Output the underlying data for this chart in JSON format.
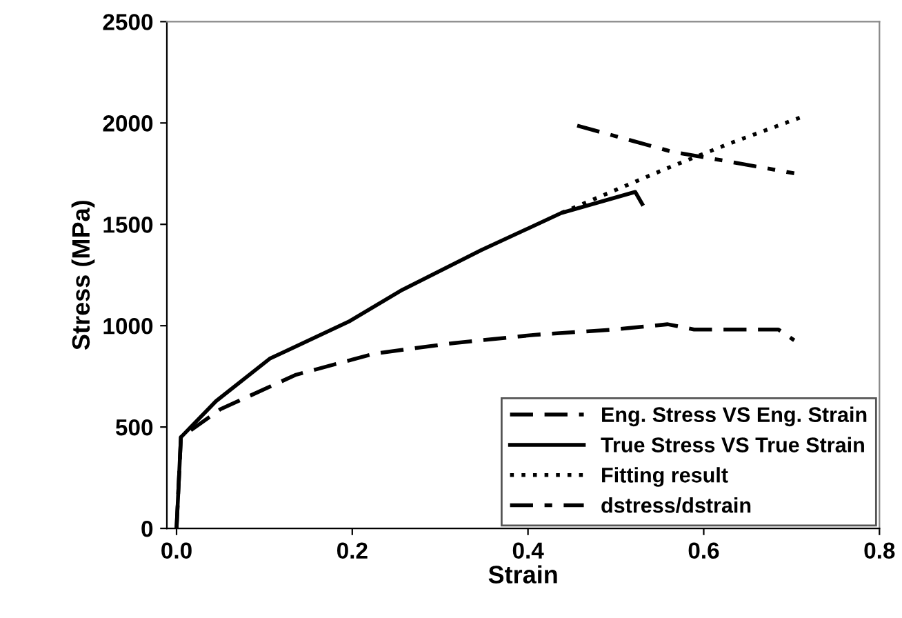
{
  "chart_data": {
    "type": "line",
    "xlabel": "Strain",
    "ylabel": "Stress (MPa)",
    "xlim": [
      -0.011,
      0.8
    ],
    "xticks": [
      {
        "value": 0,
        "label": "0.0"
      },
      0.2,
      0.4,
      0.6,
      0.8
    ],
    "ylim": [
      0,
      2500
    ],
    "yticks": [
      0,
      500,
      1000,
      1500,
      2000,
      2500
    ],
    "grid": false,
    "legend": "bottom right",
    "series": [
      {
        "name": "Eng. Stress VS Eng. Strain",
        "color": "#000000",
        "line_style": "dashed",
        "x": [
          0.0,
          0.005,
          0.05,
          0.136,
          0.226,
          0.317,
          0.408,
          0.498,
          0.559,
          0.589,
          0.685,
          0.703
        ],
        "values": [
          0,
          450,
          588,
          758,
          863,
          915,
          955,
          981,
          1007,
          981,
          981,
          928
        ]
      },
      {
        "name": "True Stress VS True Strain",
        "color": "#000000",
        "line_style": "solid",
        "x": [
          0.0,
          0.0,
          0.005,
          0.045,
          0.106,
          0.196,
          0.257,
          0.347,
          0.438,
          0.522,
          0.53
        ],
        "values": [
          0,
          0,
          450,
          628,
          837,
          1020,
          1177,
          1373,
          1556,
          1660,
          1600
        ]
      },
      {
        "name": "Fitting result",
        "color": "#000000",
        "line_style": "dotted",
        "x": [
          0.438,
          0.5,
          0.559,
          0.63,
          0.71
        ],
        "values": [
          1556,
          1670,
          1778,
          1900,
          2027
        ]
      },
      {
        "name": "dstress/dstrain",
        "color": "#000000",
        "line_style": "dashdot",
        "x": [
          0.456,
          0.565,
          0.619,
          0.703
        ],
        "values": [
          1987,
          1857,
          1817,
          1752
        ]
      }
    ]
  }
}
